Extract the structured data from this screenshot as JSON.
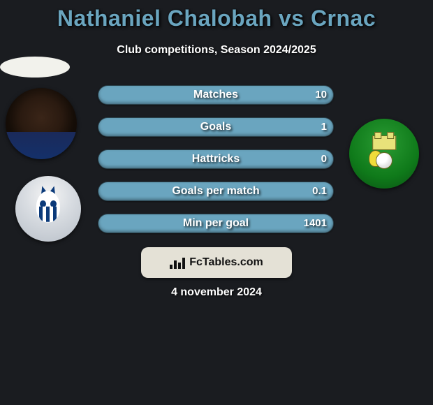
{
  "title": {
    "text": "Nathaniel Chalobah vs Crnac",
    "color": "#6aa5bf",
    "fontsize": 32
  },
  "subtitle": {
    "text": "Club competitions, Season 2024/2025",
    "color": "#ffffff",
    "fontsize": 16
  },
  "players": {
    "left": {
      "name": "Nathaniel Chalobah",
      "club_crest": "sheffield-wednesday"
    },
    "right": {
      "name": "Crnac",
      "club_crest": "norwich"
    }
  },
  "stats": {
    "label_fontsize": 16,
    "value_fontsize": 15,
    "pill_bg_left": "#5fa03a",
    "pill_bg_right": "#6aa5bf",
    "rows": [
      {
        "label": "Matches",
        "left": "",
        "right": "10",
        "split": 0.0
      },
      {
        "label": "Goals",
        "left": "",
        "right": "1",
        "split": 0.0
      },
      {
        "label": "Hattricks",
        "left": "",
        "right": "0",
        "split": 0.0
      },
      {
        "label": "Goals per match",
        "left": "",
        "right": "0.1",
        "split": 0.0
      },
      {
        "label": "Min per goal",
        "left": "",
        "right": "1401",
        "split": 0.0
      }
    ]
  },
  "footer": {
    "brand": "FcTables.com",
    "chip_bg": "#e4e1d6",
    "fontsize": 16
  },
  "date": {
    "text": "4 november 2024",
    "fontsize": 16
  },
  "colors": {
    "page_bg": "#1a1c20",
    "text": "#ffffff"
  }
}
